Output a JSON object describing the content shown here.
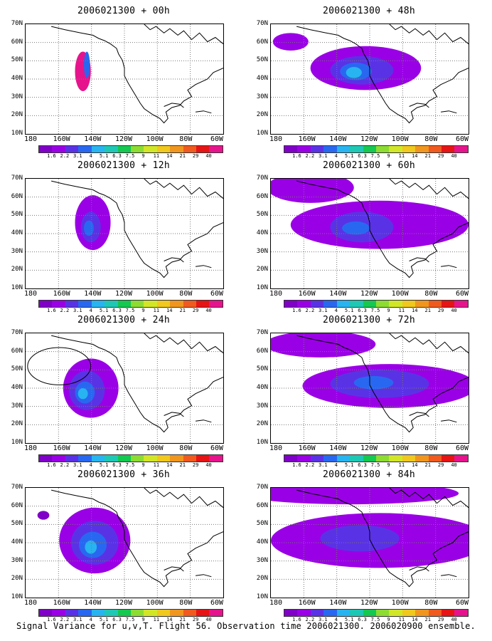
{
  "panels": [
    {
      "title": "2006021300 + 00h"
    },
    {
      "title": "2006021300 + 48h"
    },
    {
      "title": "2006021300 + 12h"
    },
    {
      "title": "2006021300 + 60h"
    },
    {
      "title": "2006021300 + 24h"
    },
    {
      "title": "2006021300 + 72h"
    },
    {
      "title": "2006021300 + 36h"
    },
    {
      "title": "2006021300 + 84h"
    }
  ],
  "y_ticks": [
    "70N",
    "60N",
    "50N",
    "40N",
    "30N",
    "20N",
    "10N"
  ],
  "x_ticks": [
    "180",
    "160W",
    "140W",
    "120W",
    "100W",
    "80W",
    "60W"
  ],
  "colorbar": {
    "colors": [
      "#8000c8",
      "#9a00e6",
      "#5a32e6",
      "#2868f0",
      "#28b4f0",
      "#1ec8b4",
      "#14c850",
      "#8cdc32",
      "#d2e628",
      "#f0c81e",
      "#f0961e",
      "#f05a1e",
      "#e61414",
      "#e6148c"
    ],
    "labels": [
      "1.6",
      "2.2",
      "3.1",
      "4",
      "5.1",
      "6.3",
      "7.5",
      "9",
      "11",
      "14",
      "21",
      "29",
      "40"
    ]
  },
  "caption": "Signal Variance for u,v,T. Flight 56. Observation time 2006021300. 2006020900 ensemble.",
  "icons": {
    "coastline": "coastline-map",
    "ellipse": "observation-ellipse"
  }
}
